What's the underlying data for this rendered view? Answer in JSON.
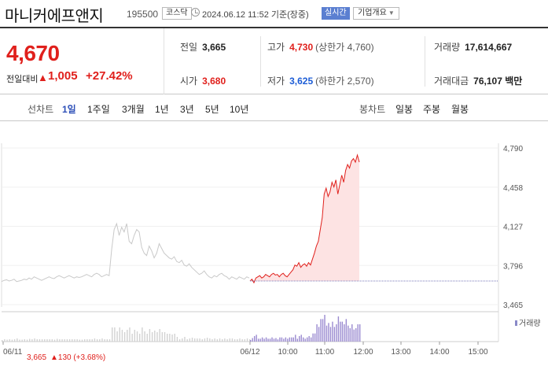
{
  "header": {
    "name": "마니커에프앤지",
    "code": "195500",
    "market": "코스닥",
    "as_of": "2024.06.12 11:52  기준(장중)",
    "realtime": "실시간",
    "company_info": "기업개요"
  },
  "price": {
    "current": "4,670",
    "change_label": "전일대비",
    "arrow": "▲",
    "change": "1,005",
    "change_pct": "+27.42%"
  },
  "stats": {
    "prev_close_label": "전일",
    "prev_close": "3,665",
    "high_label": "고가",
    "high": "4,730",
    "upper_limit": "(상한가 4,760)",
    "volume_label": "거래량",
    "volume": "17,614,667",
    "open_label": "시가",
    "open": "3,680",
    "low_label": "저가",
    "low": "3,625",
    "lower_limit": "(하한가 2,570)",
    "value_label": "거래대금",
    "value": "76,107 백만"
  },
  "tabs": {
    "line_label": "선차트",
    "periods": [
      "1일",
      "1주일",
      "3개월",
      "1년",
      "3년",
      "5년",
      "10년"
    ],
    "active_period": "1일",
    "candle_label": "봉차트",
    "candles": [
      "일봉",
      "주봉",
      "월봉"
    ]
  },
  "chart": {
    "legend_volume": "거래량",
    "prev_footer": "3,665",
    "prev_footer_change": "▲130 (+3.68%)",
    "prev_date": "06/11"
  },
  "chart_data": {
    "type": "line",
    "y_ticks": [
      "4,790",
      "4,458",
      "4,127",
      "3,796",
      "3,465"
    ],
    "ylim": [
      3465,
      4790
    ],
    "x_labels": [
      "06/11",
      "06/12",
      "10:00",
      "11:00",
      "12:00",
      "13:00",
      "14:00",
      "15:00"
    ],
    "reference_price": 3665,
    "series": [
      {
        "values_prev_day": [
          3660,
          3670,
          3675,
          3665,
          3670,
          3680,
          3660,
          3665,
          3670,
          3680,
          3675,
          3690,
          3680,
          3700,
          3690,
          3680,
          3670,
          3680,
          3690,
          3700,
          3690,
          3685,
          3700,
          3710,
          3700,
          3690,
          3700,
          3710,
          3700,
          3690,
          3700,
          3695,
          3700,
          3710,
          3720,
          3710,
          3700,
          3720,
          3730,
          3720,
          3700,
          3710,
          3720,
          3710,
          3930,
          4100,
          4150,
          4050,
          4120,
          4080,
          4150,
          4000,
          3980,
          4050,
          4100,
          4080,
          3950,
          3900,
          3880,
          3960,
          3920,
          3860,
          3900,
          3980,
          3940,
          3900,
          3880,
          3860,
          3850,
          3870,
          3830,
          3820,
          3840,
          3800,
          3790,
          3810,
          3780,
          3760,
          3740,
          3720,
          3730,
          3750,
          3720,
          3700,
          3690,
          3710,
          3700,
          3720,
          3730,
          3710,
          3700,
          3680,
          3700,
          3690,
          3680,
          3700,
          3690,
          3680,
          3700,
          3690
        ]
      },
      {
        "values_today": [
          3665,
          3680,
          3650,
          3690,
          3700,
          3710,
          3690,
          3700,
          3720,
          3710,
          3700,
          3720,
          3730,
          3715,
          3720,
          3700,
          3720,
          3730,
          3710,
          3700,
          3720,
          3740,
          3760,
          3800,
          3790,
          3820,
          3780,
          3800,
          3810,
          3790,
          3820,
          3800,
          3850,
          3900,
          3960,
          4000,
          4100,
          4200,
          4400,
          4450,
          4380,
          4420,
          4500,
          4460,
          4520,
          4400,
          4480,
          4560,
          4500,
          4600,
          4650,
          4620,
          4680,
          4700,
          4670,
          4730,
          4670
        ]
      }
    ],
    "volume_note": "bars on secondary panel (relative)"
  }
}
